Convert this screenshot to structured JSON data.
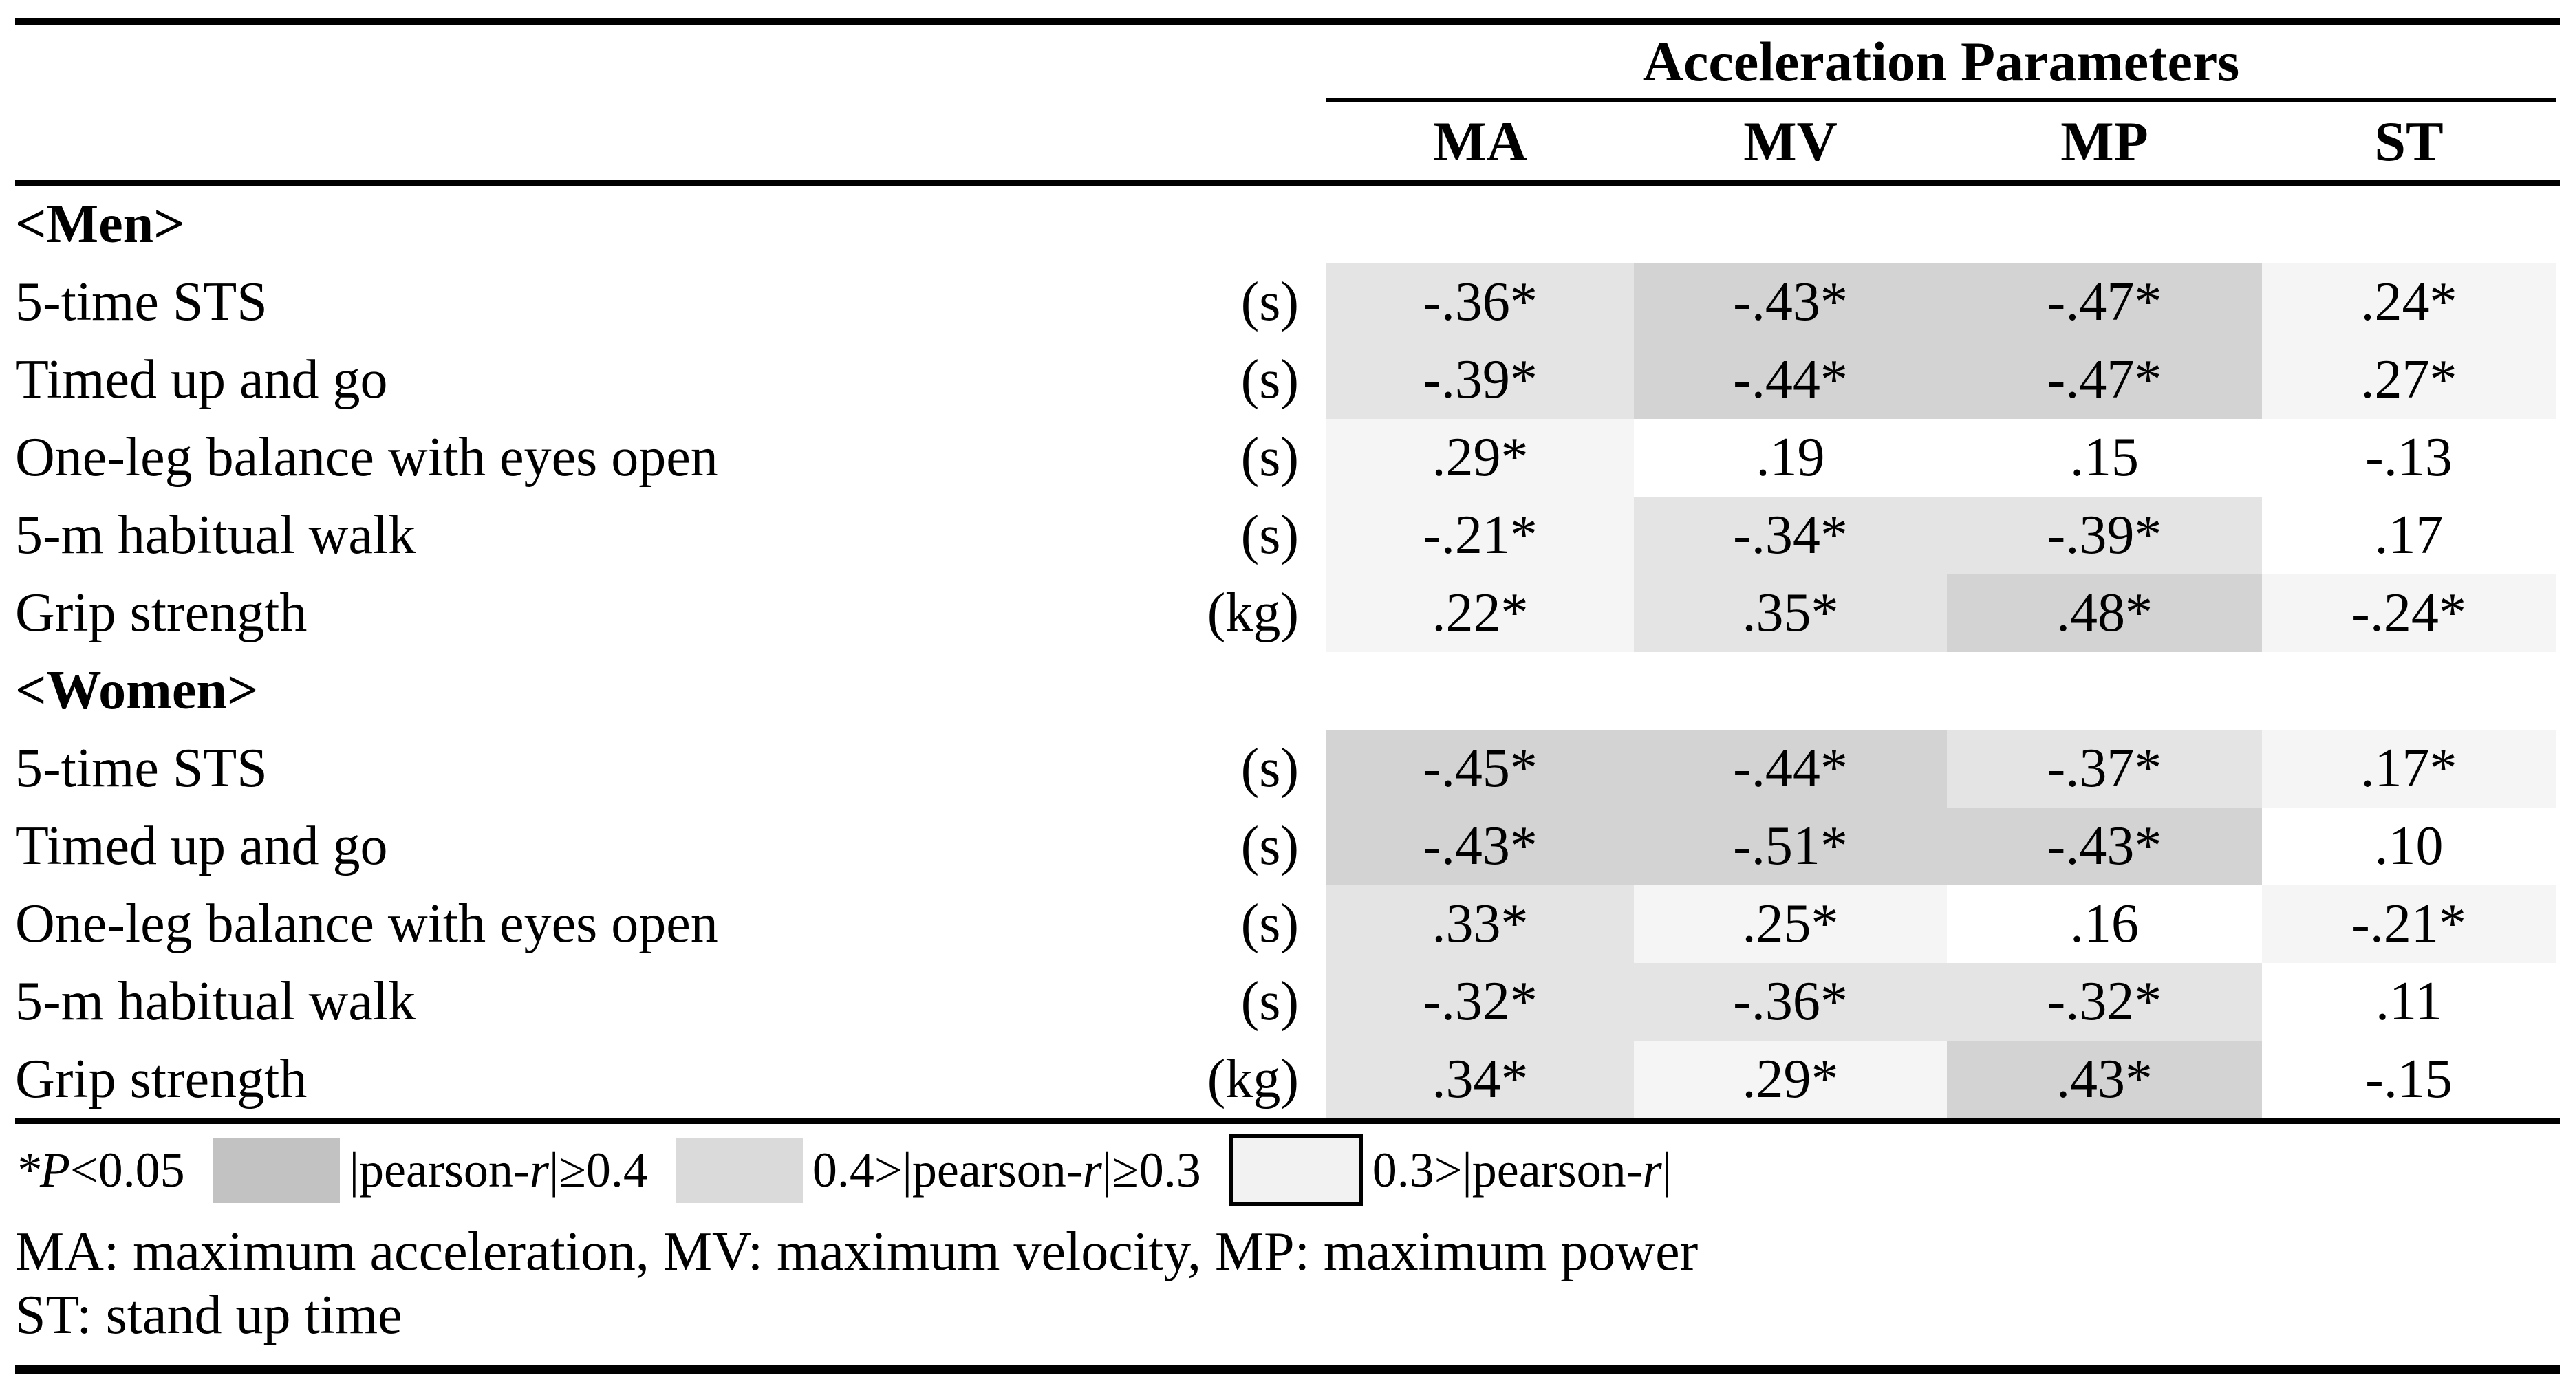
{
  "table": {
    "group_label": "Acceleration Parameters",
    "columns": [
      "MA",
      "MV",
      "MP",
      "ST"
    ],
    "rows": [
      {
        "section": true,
        "label": "<Men>"
      },
      {
        "label": "5-time STS",
        "unit": "(s)",
        "cells": [
          {
            "value": "-.36*",
            "shade": "shade_mid"
          },
          {
            "value": "-.43*",
            "shade": "shade_high"
          },
          {
            "value": "-.47*",
            "shade": "shade_high"
          },
          {
            "value": ".24*",
            "shade": "shade_low"
          }
        ]
      },
      {
        "label": "Timed up and go",
        "unit": "(s)",
        "cells": [
          {
            "value": "-.39*",
            "shade": "shade_mid"
          },
          {
            "value": "-.44*",
            "shade": "shade_high"
          },
          {
            "value": "-.47*",
            "shade": "shade_high"
          },
          {
            "value": ".27*",
            "shade": "shade_low"
          }
        ]
      },
      {
        "label": "One-leg balance with eyes open",
        "unit": "(s)",
        "cells": [
          {
            "value": ".29*",
            "shade": "shade_low"
          },
          {
            "value": ".19",
            "shade": "shade_none"
          },
          {
            "value": ".15",
            "shade": "shade_none"
          },
          {
            "value": "-.13",
            "shade": "shade_none"
          }
        ]
      },
      {
        "label": "5-m habitual walk",
        "unit": "(s)",
        "cells": [
          {
            "value": "-.21*",
            "shade": "shade_low"
          },
          {
            "value": "-.34*",
            "shade": "shade_mid"
          },
          {
            "value": "-.39*",
            "shade": "shade_mid"
          },
          {
            "value": ".17",
            "shade": "shade_none"
          }
        ]
      },
      {
        "label": "Grip strength",
        "unit": "(kg)",
        "cells": [
          {
            "value": ".22*",
            "shade": "shade_low"
          },
          {
            "value": ".35*",
            "shade": "shade_mid"
          },
          {
            "value": ".48*",
            "shade": "shade_high"
          },
          {
            "value": "-.24*",
            "shade": "shade_low"
          }
        ]
      },
      {
        "section": true,
        "label": "<Women>"
      },
      {
        "label": "5-time STS",
        "unit": "(s)",
        "cells": [
          {
            "value": "-.45*",
            "shade": "shade_high"
          },
          {
            "value": "-.44*",
            "shade": "shade_high"
          },
          {
            "value": "-.37*",
            "shade": "shade_mid"
          },
          {
            "value": ".17*",
            "shade": "shade_low"
          }
        ]
      },
      {
        "label": "Timed up and go",
        "unit": "(s)",
        "cells": [
          {
            "value": "-.43*",
            "shade": "shade_high"
          },
          {
            "value": "-.51*",
            "shade": "shade_high"
          },
          {
            "value": "-.43*",
            "shade": "shade_high"
          },
          {
            "value": ".10",
            "shade": "shade_none"
          }
        ]
      },
      {
        "label": "One-leg balance with eyes open",
        "unit": "(s)",
        "cells": [
          {
            "value": ".33*",
            "shade": "shade_mid"
          },
          {
            "value": ".25*",
            "shade": "shade_low"
          },
          {
            "value": ".16",
            "shade": "shade_none"
          },
          {
            "value": "-.21*",
            "shade": "shade_low"
          }
        ]
      },
      {
        "label": "5-m habitual walk",
        "unit": "(s)",
        "cells": [
          {
            "value": "-.32*",
            "shade": "shade_mid"
          },
          {
            "value": "-.36*",
            "shade": "shade_mid"
          },
          {
            "value": "-.32*",
            "shade": "shade_mid"
          },
          {
            "value": ".11",
            "shade": "shade_none"
          }
        ]
      },
      {
        "label": "Grip strength",
        "unit": "(kg)",
        "cells": [
          {
            "value": ".34*",
            "shade": "shade_mid"
          },
          {
            "value": ".29*",
            "shade": "shade_low"
          },
          {
            "value": ".43*",
            "shade": "shade_high"
          },
          {
            "value": "-.15",
            "shade": "shade_none"
          }
        ]
      }
    ]
  },
  "colors": {
    "shade_high": "#d3d3d3",
    "shade_mid": "#e4e4e4",
    "shade_low": "#f5f5f5",
    "shade_none": "#ffffff",
    "legend_high": "#c2c2c2",
    "legend_mid": "#dadada",
    "legend_low": "#f2f2f2",
    "rule": "#000000"
  },
  "legend": {
    "significance": [
      {
        "t": "*P",
        "i": true
      },
      {
        "t": "<0.05",
        "i": false
      }
    ],
    "items": [
      {
        "swatch": "legend_high",
        "bordered": false,
        "label": [
          {
            "t": "|pearson-",
            "i": false
          },
          {
            "t": "r",
            "i": true
          },
          {
            "t": "|≥0.4",
            "i": false
          }
        ]
      },
      {
        "swatch": "legend_mid",
        "bordered": false,
        "label": [
          {
            "t": "0.4>|pearson-",
            "i": false
          },
          {
            "t": "r",
            "i": true
          },
          {
            "t": "|≥0.3",
            "i": false
          }
        ]
      },
      {
        "swatch": "legend_low",
        "bordered": true,
        "label": [
          {
            "t": "0.3>|pearson-",
            "i": false
          },
          {
            "t": "r",
            "i": true
          },
          {
            "t": "|",
            "i": false
          }
        ]
      }
    ]
  },
  "footnotes": [
    "MA: maximum acceleration, MV: maximum velocity, MP: maximum power",
    "ST: stand up time"
  ]
}
